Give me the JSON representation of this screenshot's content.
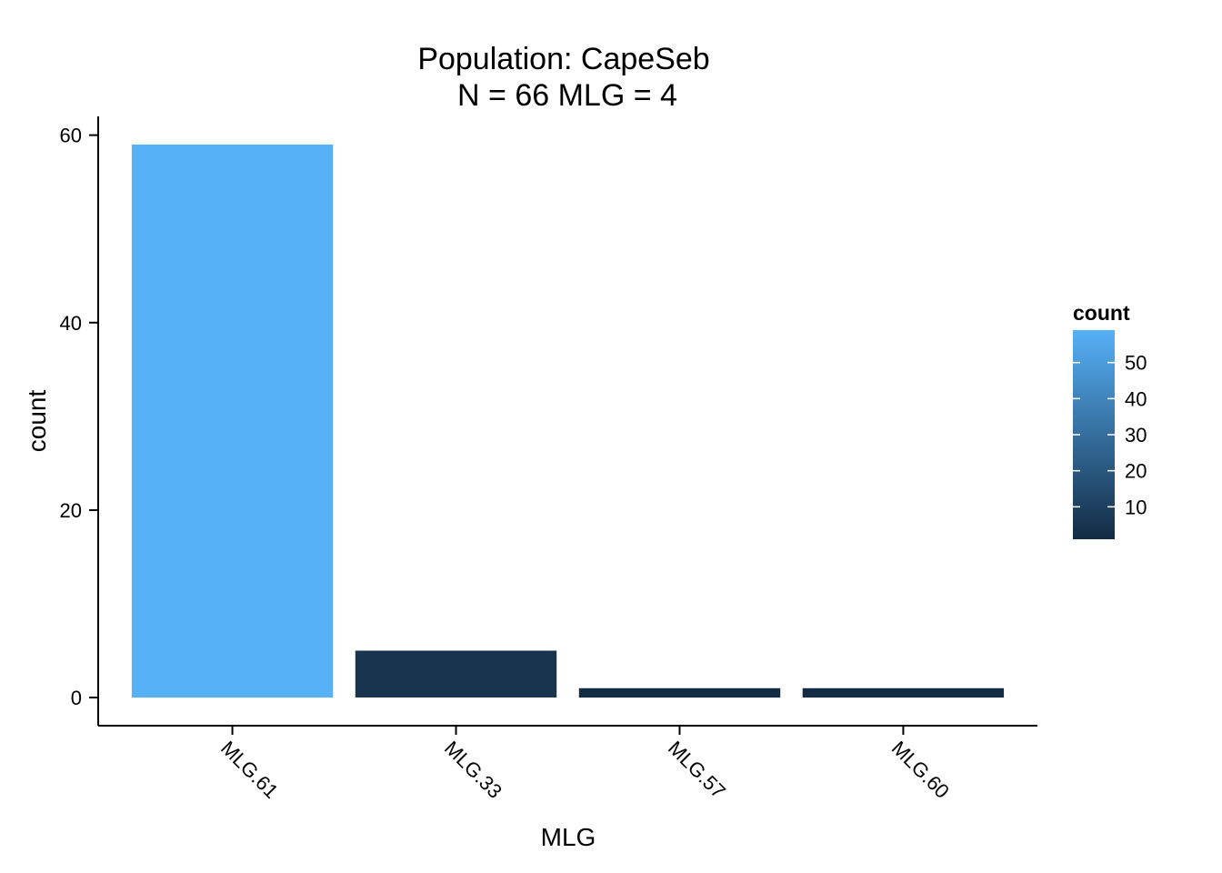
{
  "chart_data": {
    "type": "bar",
    "title": "Population: CapeSeb",
    "subtitle": "N = 66 MLG = 4",
    "xlabel": "MLG",
    "ylabel": "count",
    "categories": [
      "MLG.61",
      "MLG.33",
      "MLG.57",
      "MLG.60"
    ],
    "values": [
      59,
      5,
      1,
      1
    ],
    "ylim": [
      -3,
      62
    ],
    "yticks": [
      0,
      20,
      40,
      60
    ],
    "grid": false,
    "legend": {
      "title": "count",
      "position": "right",
      "type": "colorbar",
      "range": [
        1,
        59
      ],
      "ticks": [
        10,
        20,
        30,
        40,
        50
      ],
      "low_color": "#132B43",
      "high_color": "#56B1F7"
    }
  }
}
